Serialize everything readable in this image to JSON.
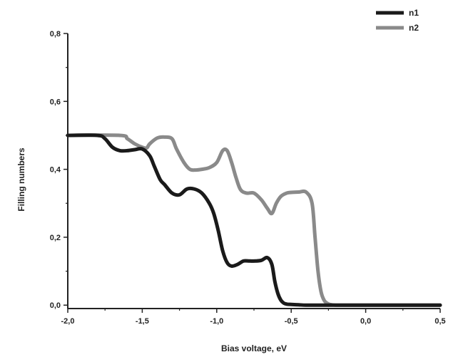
{
  "chart_data": {
    "type": "line",
    "xlabel": "Bias voltage, eV",
    "ylabel": "Filling numbers",
    "xlim": [
      -2.0,
      0.5
    ],
    "ylim": [
      -0.01,
      0.8
    ],
    "x_ticks": [
      -2.0,
      -1.5,
      -1.0,
      -0.5,
      0.0,
      0.5
    ],
    "x_tick_labels": [
      "-2,0",
      "-1,5",
      "-1,0",
      "-0,5",
      "0,0",
      "0,5"
    ],
    "y_ticks": [
      0.0,
      0.2,
      0.4,
      0.6,
      0.8
    ],
    "y_tick_labels": [
      "0,0",
      "0,2",
      "0,4",
      "0,6",
      "0,8"
    ],
    "grid": false,
    "legend_position": "top-right",
    "series": [
      {
        "name": "n1",
        "color": "#1a1a1a",
        "x": [
          -2.0,
          -1.8,
          -1.75,
          -1.7,
          -1.65,
          -1.6,
          -1.55,
          -1.5,
          -1.45,
          -1.42,
          -1.38,
          -1.35,
          -1.3,
          -1.25,
          -1.2,
          -1.15,
          -1.1,
          -1.05,
          -1.02,
          -0.99,
          -0.96,
          -0.93,
          -0.9,
          -0.86,
          -0.82,
          -0.78,
          -0.74,
          -0.7,
          -0.66,
          -0.63,
          -0.61,
          -0.59,
          -0.57,
          -0.55,
          -0.53,
          -0.5,
          -0.45,
          -0.4,
          -0.3,
          -0.2,
          0.0,
          0.2,
          0.5
        ],
        "y": [
          0.5,
          0.5,
          0.49,
          0.465,
          0.455,
          0.455,
          0.458,
          0.46,
          0.44,
          0.41,
          0.37,
          0.355,
          0.33,
          0.325,
          0.342,
          0.342,
          0.33,
          0.3,
          0.27,
          0.22,
          0.16,
          0.125,
          0.115,
          0.12,
          0.13,
          0.13,
          0.13,
          0.132,
          0.14,
          0.12,
          0.07,
          0.035,
          0.015,
          0.006,
          0.003,
          0.002,
          0.001,
          0.0,
          0.0,
          0.0,
          0.0,
          0.0,
          0.0
        ]
      },
      {
        "name": "n2",
        "color": "#8a8a8a",
        "x": [
          -2.0,
          -1.65,
          -1.6,
          -1.55,
          -1.5,
          -1.47,
          -1.45,
          -1.4,
          -1.35,
          -1.3,
          -1.27,
          -1.22,
          -1.18,
          -1.14,
          -1.1,
          -1.05,
          -1.0,
          -0.96,
          -0.93,
          -0.9,
          -0.87,
          -0.84,
          -0.8,
          -0.75,
          -0.7,
          -0.66,
          -0.63,
          -0.6,
          -0.57,
          -0.53,
          -0.5,
          -0.45,
          -0.4,
          -0.36,
          -0.34,
          -0.32,
          -0.3,
          -0.28,
          -0.26,
          -0.24,
          -0.2,
          -0.1,
          0.0,
          0.2,
          0.5
        ],
        "y": [
          0.5,
          0.5,
          0.49,
          0.475,
          0.465,
          0.463,
          0.475,
          0.492,
          0.495,
          0.49,
          0.46,
          0.42,
          0.4,
          0.398,
          0.4,
          0.405,
          0.42,
          0.455,
          0.455,
          0.42,
          0.375,
          0.34,
          0.33,
          0.33,
          0.31,
          0.285,
          0.27,
          0.3,
          0.32,
          0.33,
          0.332,
          0.333,
          0.333,
          0.3,
          0.2,
          0.1,
          0.04,
          0.015,
          0.006,
          0.002,
          0.0,
          0.0,
          0.0,
          0.0,
          0.0
        ]
      }
    ]
  }
}
